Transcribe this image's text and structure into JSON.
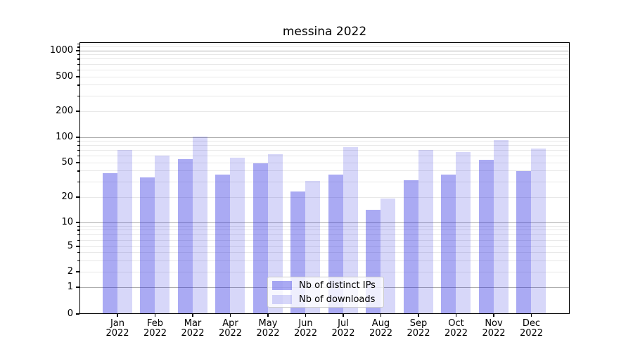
{
  "figure": {
    "title": "messina 2022"
  },
  "chart_data": {
    "type": "bar",
    "title": "messina 2022",
    "categories": [
      "Jan 2022",
      "Feb 2022",
      "Mar 2022",
      "Apr 2022",
      "May 2022",
      "Jun 2022",
      "Jul 2022",
      "Aug 2022",
      "Sep 2022",
      "Oct 2022",
      "Nov 2022",
      "Dec 2022"
    ],
    "series": [
      {
        "name": "Nb of distinct IPs",
        "color": "rgba(32,32,224,0.38)",
        "values": [
          37,
          33,
          54,
          36,
          48,
          23,
          36,
          14,
          31,
          36,
          53,
          39
        ]
      },
      {
        "name": "Nb of downloads",
        "color": "rgba(32,32,224,0.18)",
        "values": [
          70,
          60,
          100,
          56,
          62,
          30,
          75,
          19,
          69,
          66,
          90,
          72
        ]
      }
    ],
    "xlabel": "",
    "ylabel": "",
    "y_scale": "symlog",
    "ylim": [
      0,
      1250
    ],
    "y_ticks": [
      0,
      1,
      2,
      5,
      10,
      20,
      50,
      100,
      200,
      500,
      1000
    ],
    "y_tick_labels": [
      "0",
      "1",
      "2",
      "5",
      "10",
      "20",
      "50",
      "100",
      "200",
      "500",
      "1000"
    ],
    "y_major_gridlines": [
      1,
      10,
      100,
      1000
    ],
    "y_minor_gridlines": [
      2,
      3,
      4,
      5,
      6,
      7,
      8,
      9,
      20,
      30,
      40,
      50,
      60,
      70,
      80,
      90,
      200,
      300,
      400,
      500,
      600,
      700,
      800,
      900,
      1100,
      1200
    ],
    "grid": true,
    "legend": {
      "position": "lower center",
      "items": [
        "Nb of distinct IPs",
        "Nb of downloads"
      ]
    },
    "colors": {
      "major_grid": "#ababab",
      "minor_grid": "#e8e8e8",
      "spine": "#000000",
      "text": "#000000"
    }
  }
}
